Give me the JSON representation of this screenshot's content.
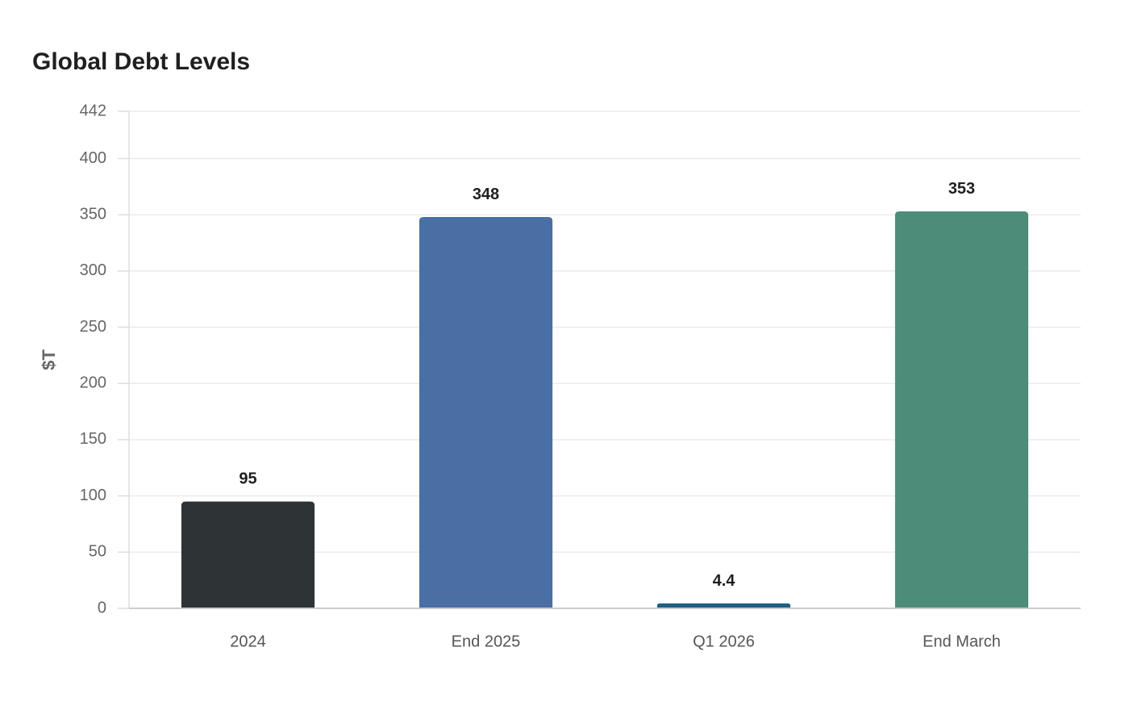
{
  "chart_data": {
    "type": "bar",
    "title": "Global Debt Levels",
    "xlabel": "",
    "ylabel": "$T",
    "categories": [
      "2024",
      "End 2025",
      "Q1 2026",
      "End March"
    ],
    "values": [
      95,
      348,
      4.4,
      353
    ],
    "value_labels": [
      "95",
      "348",
      "4.4",
      "353"
    ],
    "colors": [
      "#2e3436",
      "#4a6fa5",
      "#1f5f82",
      "#4e8c7a"
    ],
    "ylim": [
      0,
      442
    ],
    "yticks": [
      0,
      50,
      100,
      150,
      200,
      250,
      300,
      350,
      400,
      442
    ],
    "grid": true,
    "legend": "none"
  }
}
